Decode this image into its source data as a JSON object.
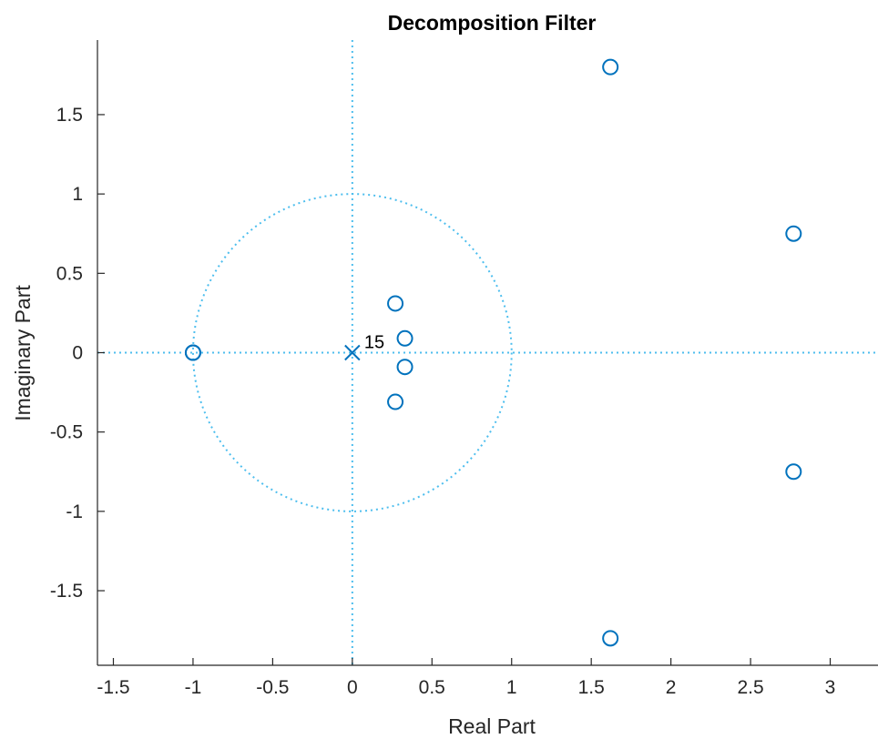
{
  "chart_data": {
    "type": "scatter",
    "title": "Decomposition Filter",
    "xlabel": "Real Part",
    "ylabel": "Imaginary Part",
    "xlim": [
      -1.6,
      3.3
    ],
    "ylim": [
      -1.97,
      1.97
    ],
    "xticks": [
      -1.5,
      -1,
      -0.5,
      0,
      0.5,
      1,
      1.5,
      2,
      2.5,
      3
    ],
    "xtick_labels": [
      "-1.5",
      "-1",
      "-0.5",
      "0",
      "0.5",
      "1",
      "1.5",
      "2",
      "2.5",
      "3"
    ],
    "yticks": [
      -1.5,
      -1,
      -0.5,
      0,
      0.5,
      1,
      1.5
    ],
    "ytick_labels": [
      "-1.5",
      "-1",
      "-0.5",
      "0",
      "0.5",
      "1",
      "1.5"
    ],
    "grid": false,
    "unit_circle": true,
    "zeros": [
      {
        "x": -1.0,
        "y": 0.0
      },
      {
        "x": -1.0,
        "y": 0.0
      },
      {
        "x": 0.27,
        "y": 0.31
      },
      {
        "x": 0.27,
        "y": -0.31
      },
      {
        "x": 0.33,
        "y": 0.09
      },
      {
        "x": 0.33,
        "y": -0.09
      },
      {
        "x": 1.62,
        "y": 1.8
      },
      {
        "x": 1.62,
        "y": -1.8
      },
      {
        "x": 2.77,
        "y": 0.75
      },
      {
        "x": 2.77,
        "y": -0.75
      }
    ],
    "poles": [
      {
        "x": 0.0,
        "y": 0.0,
        "multiplicity_label": "15"
      }
    ],
    "colors": {
      "marker": "#0072BD",
      "reference": "#4DBEEE",
      "axes": "#262626"
    }
  }
}
